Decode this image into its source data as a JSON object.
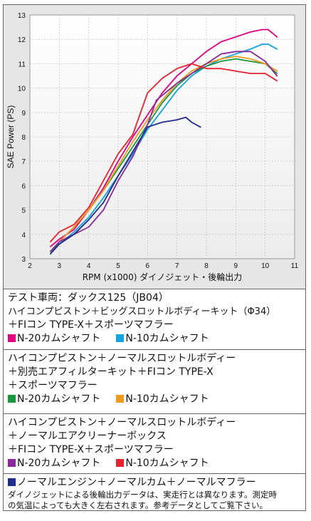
{
  "chart_data": {
    "type": "line",
    "xlabel": "RPM (x1000) ダイノジェット・後輪出力",
    "ylabel": "SAE Power (PS)",
    "xlim": [
      2,
      11
    ],
    "ylim": [
      3,
      13
    ],
    "xticks": [
      "2",
      "3",
      "4",
      "5",
      "6",
      "7",
      "8",
      "9",
      "10",
      "11"
    ],
    "yticks": [
      "3",
      "4",
      "5",
      "6",
      "7",
      "8",
      "9",
      "10",
      "11",
      "12",
      "13"
    ],
    "grid": true,
    "series": [
      {
        "name": "N-20カムシャフト",
        "color": "#e3007f",
        "points": [
          [
            2.7,
            3.5
          ],
          [
            3.0,
            3.8
          ],
          [
            3.5,
            4.2
          ],
          [
            4.0,
            5.0
          ],
          [
            4.5,
            5.9
          ],
          [
            5.0,
            7.0
          ],
          [
            5.5,
            8.0
          ],
          [
            6.0,
            8.9
          ],
          [
            6.5,
            9.8
          ],
          [
            7.0,
            10.5
          ],
          [
            7.5,
            11.0
          ],
          [
            8.0,
            11.5
          ],
          [
            8.5,
            11.9
          ],
          [
            9.0,
            12.1
          ],
          [
            9.5,
            12.3
          ],
          [
            9.9,
            12.4
          ],
          [
            10.1,
            12.4
          ],
          [
            10.4,
            12.1
          ]
        ]
      },
      {
        "name": "N-10カムシャフト",
        "color": "#12a3e0",
        "points": [
          [
            2.7,
            3.3
          ],
          [
            3.0,
            3.6
          ],
          [
            3.5,
            4.1
          ],
          [
            4.0,
            4.7
          ],
          [
            4.5,
            5.5
          ],
          [
            5.0,
            6.4
          ],
          [
            5.5,
            7.3
          ],
          [
            6.0,
            8.3
          ],
          [
            6.5,
            9.1
          ],
          [
            7.0,
            9.9
          ],
          [
            7.5,
            10.5
          ],
          [
            8.0,
            10.9
          ],
          [
            8.5,
            11.2
          ],
          [
            9.0,
            11.4
          ],
          [
            9.5,
            11.6
          ],
          [
            9.9,
            11.8
          ],
          [
            10.1,
            11.8
          ],
          [
            10.4,
            11.6
          ]
        ]
      },
      {
        "name": "N-20カムシャフト",
        "color": "#1a9640",
        "points": [
          [
            2.7,
            3.2
          ],
          [
            3.0,
            3.7
          ],
          [
            3.5,
            4.3
          ],
          [
            4.0,
            5.0
          ],
          [
            4.5,
            5.8
          ],
          [
            5.0,
            6.7
          ],
          [
            5.5,
            7.6
          ],
          [
            6.0,
            8.5
          ],
          [
            6.5,
            9.4
          ],
          [
            7.0,
            10.1
          ],
          [
            7.5,
            10.6
          ],
          [
            8.0,
            10.9
          ],
          [
            8.5,
            11.1
          ],
          [
            9.0,
            11.2
          ],
          [
            9.5,
            11.1
          ],
          [
            10.0,
            11.0
          ],
          [
            10.4,
            10.6
          ]
        ]
      },
      {
        "name": "N-10カムシャフト",
        "color": "#f39a1c",
        "points": [
          [
            2.7,
            3.3
          ],
          [
            3.0,
            3.7
          ],
          [
            3.5,
            4.3
          ],
          [
            4.0,
            5.0
          ],
          [
            4.5,
            5.8
          ],
          [
            5.0,
            6.8
          ],
          [
            5.5,
            7.8
          ],
          [
            6.0,
            8.7
          ],
          [
            6.5,
            9.5
          ],
          [
            7.0,
            10.2
          ],
          [
            7.5,
            10.7
          ],
          [
            8.0,
            11.0
          ],
          [
            8.5,
            11.2
          ],
          [
            9.0,
            11.3
          ],
          [
            9.5,
            11.2
          ],
          [
            10.0,
            11.0
          ],
          [
            10.4,
            10.7
          ]
        ]
      },
      {
        "name": "N-20カムシャフト",
        "color": "#8a2a9a",
        "points": [
          [
            2.7,
            3.3
          ],
          [
            3.0,
            3.7
          ],
          [
            3.5,
            4.0
          ],
          [
            4.0,
            4.3
          ],
          [
            4.5,
            5.0
          ],
          [
            5.0,
            6.2
          ],
          [
            5.5,
            7.2
          ],
          [
            6.0,
            8.5
          ],
          [
            6.3,
            9.5
          ],
          [
            6.6,
            9.8
          ],
          [
            7.0,
            10.2
          ],
          [
            7.5,
            10.6
          ],
          [
            8.0,
            11.0
          ],
          [
            8.5,
            11.4
          ],
          [
            9.0,
            11.5
          ],
          [
            9.5,
            11.5
          ],
          [
            10.0,
            11.1
          ],
          [
            10.4,
            10.5
          ]
        ]
      },
      {
        "name": "N-10カムシャフト",
        "color": "#e8232f",
        "points": [
          [
            2.7,
            3.7
          ],
          [
            3.0,
            4.1
          ],
          [
            3.5,
            4.4
          ],
          [
            4.0,
            5.1
          ],
          [
            4.5,
            6.2
          ],
          [
            5.0,
            7.3
          ],
          [
            5.5,
            8.1
          ],
          [
            6.0,
            9.8
          ],
          [
            6.5,
            10.4
          ],
          [
            7.0,
            10.8
          ],
          [
            7.5,
            11.0
          ],
          [
            8.0,
            10.8
          ],
          [
            8.5,
            10.8
          ],
          [
            9.0,
            10.7
          ],
          [
            9.5,
            10.6
          ],
          [
            10.0,
            10.6
          ],
          [
            10.4,
            10.3
          ]
        ]
      },
      {
        "name": "ノーマルエンジン＋ノーマルカム＋ノーマルマフラー",
        "color": "#1f2c8a",
        "points": [
          [
            2.7,
            3.2
          ],
          [
            3.0,
            3.6
          ],
          [
            3.5,
            4.0
          ],
          [
            4.0,
            4.6
          ],
          [
            4.5,
            5.3
          ],
          [
            5.0,
            6.4
          ],
          [
            5.5,
            7.4
          ],
          [
            6.0,
            8.4
          ],
          [
            6.5,
            8.6
          ],
          [
            7.0,
            8.7
          ],
          [
            7.3,
            8.8
          ],
          [
            7.5,
            8.6
          ],
          [
            7.8,
            8.4
          ]
        ]
      }
    ]
  },
  "legend": {
    "box1": {
      "line1": "テスト車両：ダックス125（JB04）",
      "line2": "ハイコンプピストン＋ビッグスロットルボディーキット（Φ34）",
      "line3": "＋FIコン TYPE-X＋スポーツマフラー",
      "item_a": "N-20カムシャフト",
      "item_b": "N-10カムシャフト",
      "color_a": "#e3007f",
      "color_b": "#12a3e0"
    },
    "box2": {
      "line1": "ハイコンプピストン＋ノーマルスロットルボディー",
      "line2": "＋別売エアフィルターキット＋FIコン TYPE-X",
      "line3": "＋スポーツマフラー",
      "item_a": "N-20カムシャフト",
      "item_b": "N-10カムシャフト",
      "color_a": "#1a9640",
      "color_b": "#f39a1c"
    },
    "box3": {
      "line1": "ハイコンプピストン＋ノーマルスロットルボディー",
      "line2": "＋ノーマルエアクリーナーボックス",
      "line3": "＋FIコン TYPE-X＋スポーツマフラー",
      "item_a": "N-20カムシャフト",
      "item_b": "N-10カムシャフト",
      "color_a": "#8a2a9a",
      "color_b": "#e8232f"
    },
    "box4": {
      "item": "ノーマルエンジン＋ノーマルカム＋ノーマルマフラー",
      "color": "#1f2c8a",
      "note1": "ダイノジェットによる後輪出力データは、実走行とは異なります。測定時",
      "note2": "の気温によっても大きく左右されます。参考データとしてご覧下さい。"
    }
  }
}
